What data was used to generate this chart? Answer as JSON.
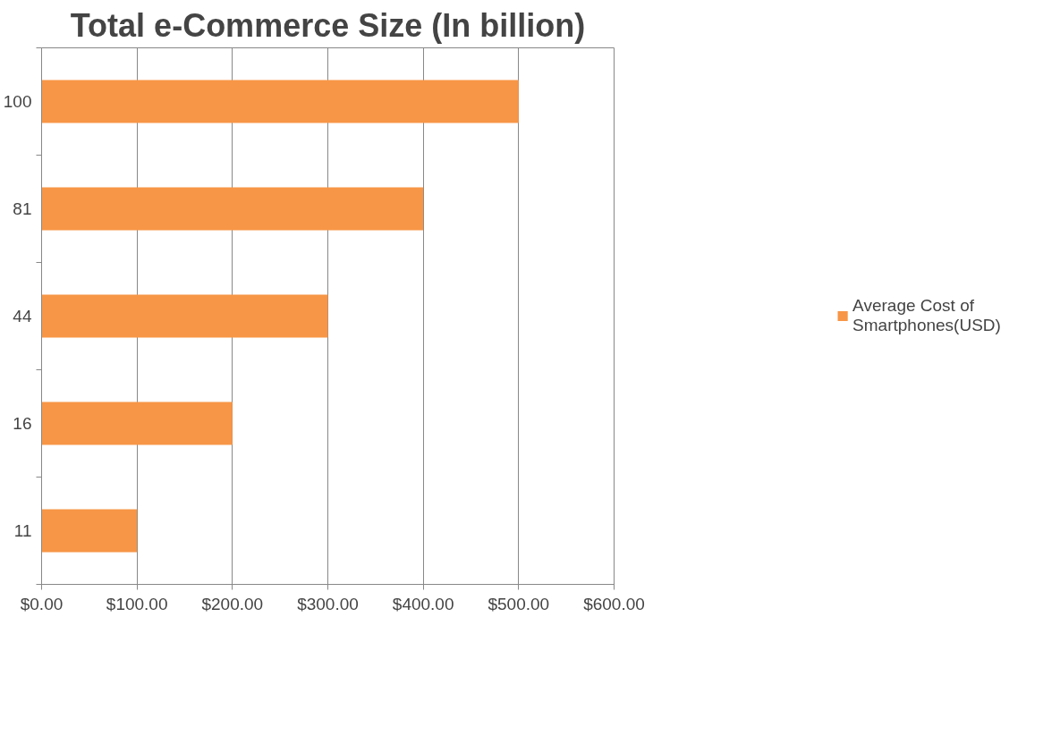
{
  "chart_data": {
    "type": "bar",
    "orientation": "horizontal",
    "title": "Total e-Commerce Size (In billion)",
    "categories": [
      "100",
      "81",
      "44",
      "16",
      "11"
    ],
    "series": [
      {
        "name": "Average Cost of Smartphones(USD)",
        "color": "#f79646",
        "values": [
          500,
          400,
          300,
          200,
          100
        ]
      }
    ],
    "xlim": [
      0,
      600
    ],
    "xticks": [
      {
        "value": 0,
        "label": "$0.00"
      },
      {
        "value": 100,
        "label": "$100.00"
      },
      {
        "value": 200,
        "label": "$200.00"
      },
      {
        "value": 300,
        "label": "$300.00"
      },
      {
        "value": 400,
        "label": "$400.00"
      },
      {
        "value": 500,
        "label": "$500.00"
      },
      {
        "value": 600,
        "label": "$600.00"
      }
    ],
    "grid": "x",
    "legend": "right"
  }
}
